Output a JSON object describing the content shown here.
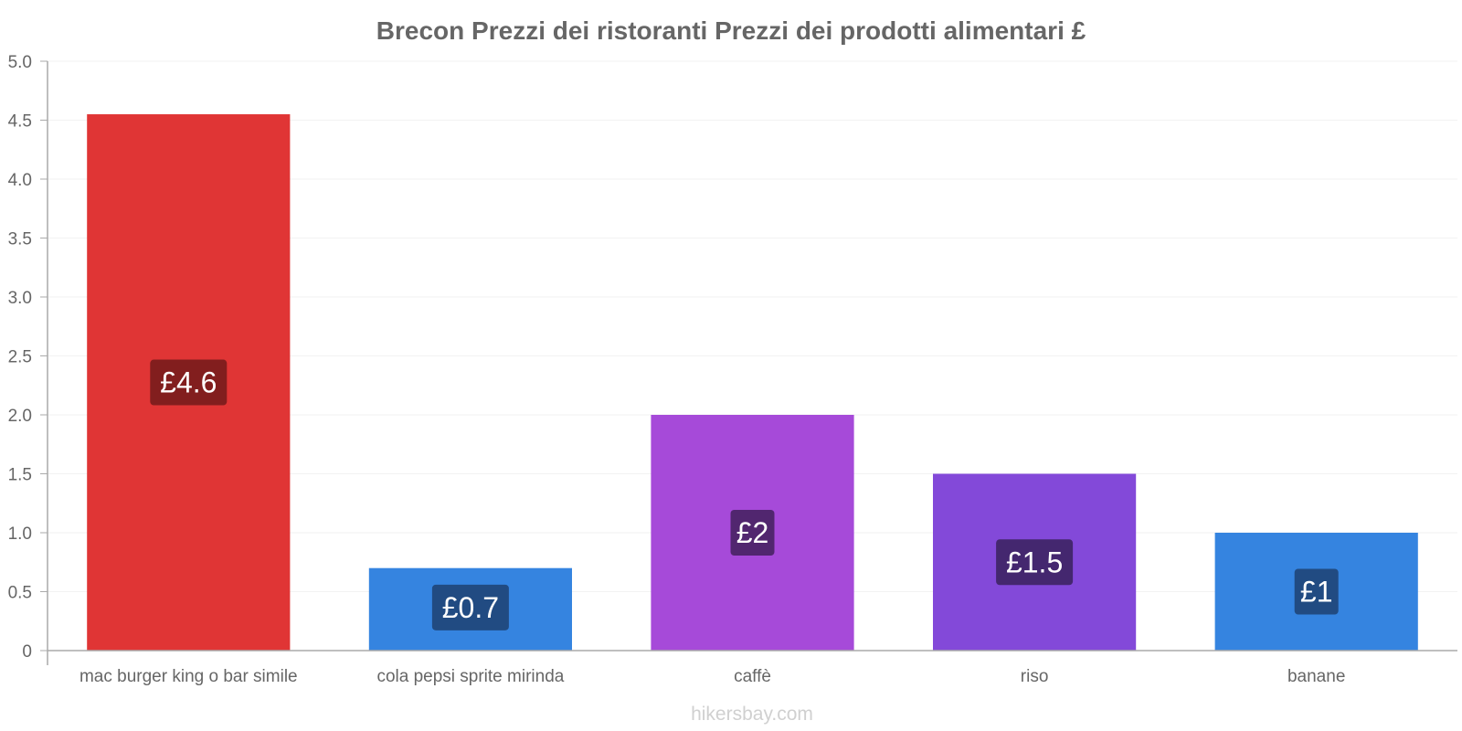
{
  "chart_data": {
    "type": "bar",
    "title": "Brecon Prezzi dei ristoranti Prezzi dei prodotti alimentari £",
    "categories": [
      "mac burger king o bar simile",
      "cola pepsi sprite mirinda",
      "caffè",
      "riso",
      "banane"
    ],
    "values": [
      4.55,
      0.7,
      2.0,
      1.5,
      1.0
    ],
    "labels": [
      "£4.6",
      "£0.7",
      "£2",
      "£1.5",
      "£1"
    ],
    "colors": [
      "#e03535",
      "#3584e0",
      "#a64ad9",
      "#8349d9",
      "#3584e0"
    ],
    "label_bg_colors": [
      "#7a1c1c",
      "#1f467a",
      "#4a2366",
      "#3f2566",
      "#1f467a"
    ],
    "ylim": [
      0,
      5
    ],
    "yticks": [
      "0",
      "0.5",
      "1.0",
      "1.5",
      "2.0",
      "2.5",
      "3.0",
      "3.5",
      "4.0",
      "4.5",
      "5.0"
    ],
    "xlabel": "",
    "ylabel": "",
    "grid": true
  },
  "watermark": "hikersbay.com"
}
